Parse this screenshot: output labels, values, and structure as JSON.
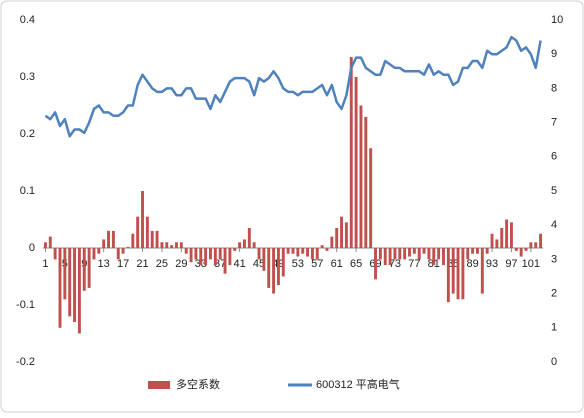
{
  "chart_data": {
    "type": "bar_line",
    "categories": [
      "1",
      null,
      null,
      null,
      "5",
      null,
      null,
      null,
      "9",
      null,
      null,
      null,
      "13",
      null,
      null,
      null,
      "17",
      null,
      null,
      null,
      "21",
      null,
      null,
      null,
      "25",
      null,
      null,
      null,
      "29",
      null,
      null,
      null,
      "33",
      null,
      null,
      null,
      "37",
      null,
      null,
      null,
      "41",
      null,
      null,
      null,
      "45",
      null,
      null,
      null,
      "49",
      null,
      null,
      null,
      "53",
      null,
      null,
      null,
      "57",
      null,
      null,
      null,
      "61",
      null,
      null,
      null,
      "65",
      null,
      null,
      null,
      "69",
      null,
      null,
      null,
      "73",
      null,
      null,
      null,
      "77",
      null,
      null,
      null,
      "81",
      null,
      null,
      null,
      "85",
      null,
      null,
      null,
      "89",
      null,
      null,
      null,
      "93",
      null,
      null,
      null,
      "97",
      null,
      null,
      null,
      "101",
      null,
      null
    ],
    "series": [
      {
        "name": "多空系数",
        "color": "#c0504d",
        "kind": "bar",
        "axis": "y",
        "values": [
          0.01,
          0.02,
          -0.02,
          -0.14,
          -0.09,
          -0.12,
          -0.13,
          -0.15,
          -0.075,
          -0.07,
          -0.02,
          -0.01,
          0.015,
          0.03,
          0.03,
          -0.02,
          -0.01,
          0.002,
          0.025,
          0.055,
          0.1,
          0.055,
          0.03,
          0.03,
          0.01,
          0.01,
          0.005,
          0.01,
          0.01,
          -0.01,
          -0.025,
          -0.02,
          -0.03,
          -0.03,
          -0.02,
          -0.03,
          -0.02,
          -0.045,
          -0.03,
          -0.005,
          0.01,
          0.015,
          0.035,
          0.01,
          -0.02,
          -0.04,
          -0.07,
          -0.08,
          -0.065,
          -0.05,
          -0.01,
          -0.01,
          -0.015,
          -0.01,
          -0.015,
          -0.02,
          -0.02,
          0.005,
          -0.005,
          0.02,
          0.035,
          0.055,
          0.045,
          0.335,
          0.3,
          0.25,
          0.23,
          0.175,
          -0.055,
          -0.02,
          -0.03,
          -0.03,
          -0.02,
          -0.02,
          -0.02,
          -0.015,
          -0.01,
          -0.02,
          -0.01,
          -0.02,
          -0.03,
          -0.02,
          -0.03,
          -0.095,
          -0.08,
          -0.09,
          -0.09,
          -0.02,
          -0.01,
          -0.01,
          -0.08,
          -0.01,
          0.025,
          0.015,
          0.035,
          0.05,
          0.045,
          -0.005,
          -0.015,
          -0.005,
          0.01,
          0.01,
          0.025
        ]
      },
      {
        "name": "600312 平高电气",
        "color": "#4f81bd",
        "kind": "line",
        "axis": "y2",
        "values": [
          7.2,
          7.1,
          7.3,
          6.9,
          7.1,
          6.6,
          6.8,
          6.8,
          6.7,
          7.0,
          7.4,
          7.5,
          7.3,
          7.3,
          7.2,
          7.2,
          7.3,
          7.5,
          7.5,
          8.1,
          8.4,
          8.2,
          8.0,
          7.9,
          7.9,
          8.0,
          8.0,
          7.8,
          7.8,
          8.0,
          8.0,
          7.7,
          7.7,
          7.7,
          7.4,
          7.8,
          7.6,
          7.9,
          8.2,
          8.3,
          8.3,
          8.3,
          8.2,
          7.8,
          8.3,
          8.2,
          8.3,
          8.5,
          8.3,
          8.0,
          7.9,
          7.9,
          7.8,
          7.9,
          7.9,
          7.9,
          8.0,
          8.1,
          7.8,
          8.1,
          7.6,
          7.4,
          7.8,
          8.6,
          8.9,
          8.9,
          8.6,
          8.5,
          8.4,
          8.4,
          8.8,
          8.7,
          8.6,
          8.6,
          8.5,
          8.5,
          8.5,
          8.5,
          8.4,
          8.7,
          8.4,
          8.5,
          8.4,
          8.4,
          8.1,
          8.2,
          8.6,
          8.6,
          8.8,
          8.8,
          8.6,
          9.1,
          9.0,
          9.0,
          9.1,
          9.2,
          9.5,
          9.4,
          9.1,
          9.2,
          9.0,
          8.6,
          9.4
        ]
      }
    ],
    "ylim": [
      -0.2,
      0.4
    ],
    "yticks": [
      0.4,
      0.3,
      0.2,
      0.1,
      0,
      -0.1,
      -0.2
    ],
    "y2lim": [
      0,
      10
    ],
    "y2ticks": [
      0,
      1,
      2,
      3,
      4,
      5,
      6,
      7,
      8,
      9,
      10
    ],
    "legend": "bottom"
  }
}
